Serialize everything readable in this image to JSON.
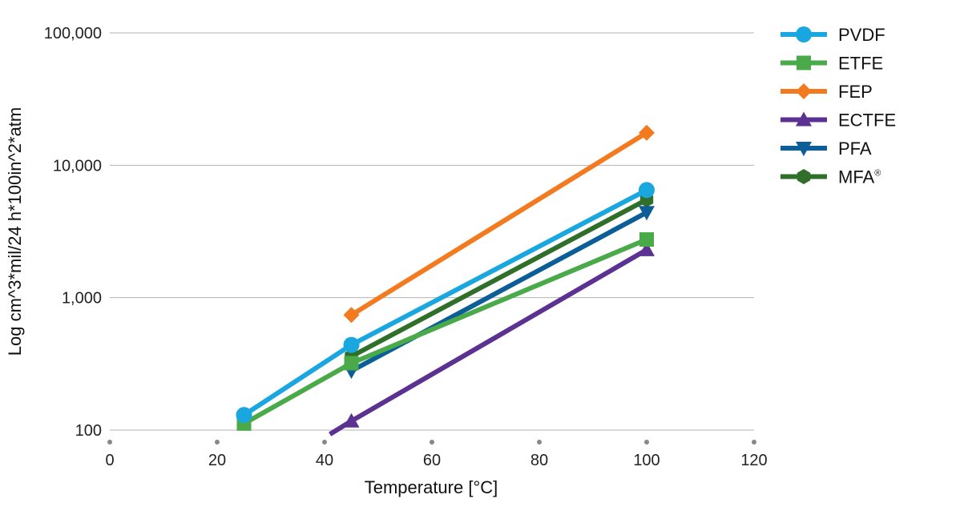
{
  "chart_data": {
    "type": "line",
    "y_scale": "log",
    "title": "",
    "xlabel_main": "Temperature",
    "xlabel_unit": " [°C]",
    "ylabel": "Log cm^3*mil/24 h*100in^2*atm",
    "xlim": [
      0,
      120
    ],
    "ylim": [
      100,
      100000
    ],
    "x_ticks": [
      "0",
      "20",
      "40",
      "60",
      "80",
      "100",
      "120"
    ],
    "x_tick_values": [
      0,
      20,
      40,
      60,
      80,
      100,
      120
    ],
    "y_ticks": [
      "100",
      "1,000",
      "10,000",
      "100,000"
    ],
    "y_tick_values": [
      100,
      1000,
      10000,
      100000
    ],
    "grid": "horizontal",
    "legend_position": "right",
    "series": [
      {
        "name": "PVDF",
        "superscript": "",
        "color": "#1aa7e0",
        "marker": "circle",
        "x": [
          25,
          45,
          100
        ],
        "y": [
          130,
          440,
          6500
        ]
      },
      {
        "name": "ETFE",
        "superscript": "",
        "color": "#4aaa4a",
        "marker": "square",
        "x": [
          25,
          45,
          100
        ],
        "y": [
          112,
          320,
          2750
        ]
      },
      {
        "name": "FEP",
        "superscript": "",
        "color": "#f47a20",
        "marker": "diamond",
        "x": [
          45,
          100
        ],
        "y": [
          740,
          17600
        ]
      },
      {
        "name": "ECTFE",
        "superscript": "",
        "color": "#5b3191",
        "marker": "triangle-up",
        "x": [
          41,
          45,
          100
        ],
        "y": [
          93,
          117,
          2300
        ]
      },
      {
        "name": "PFA",
        "superscript": "",
        "color": "#0b5e98",
        "marker": "triangle-down",
        "x": [
          45,
          100
        ],
        "y": [
          280,
          4400
        ]
      },
      {
        "name": "MFA",
        "superscript": "®",
        "color": "#2f6f2a",
        "marker": "hexagon",
        "x": [
          45,
          100
        ],
        "y": [
          360,
          5500
        ]
      }
    ]
  }
}
